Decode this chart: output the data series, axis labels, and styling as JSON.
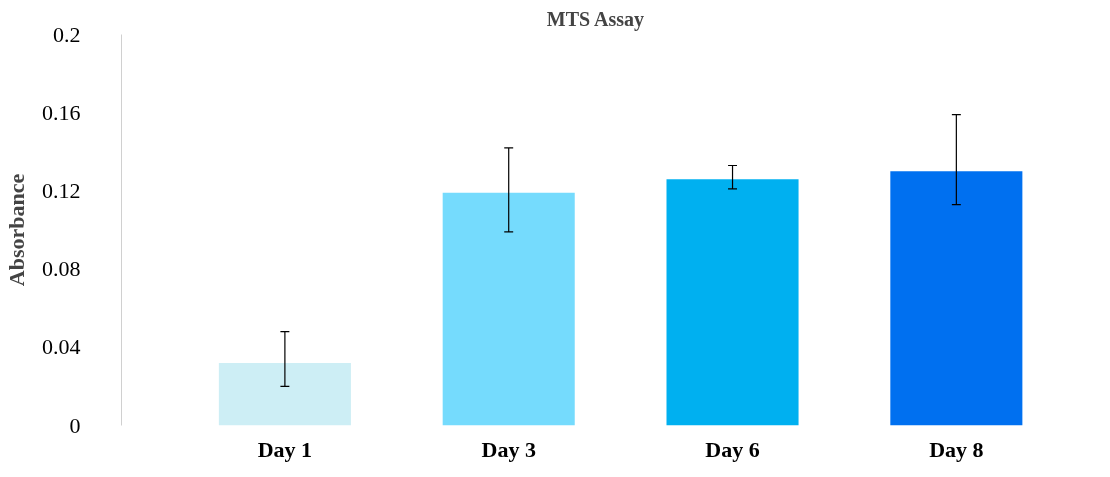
{
  "chart_data": {
    "type": "bar",
    "title": "MTS Assay",
    "ylabel": "Absorbance",
    "categories": [
      "Day 1",
      "Day 3",
      "Day 6",
      "Day 8"
    ],
    "values": [
      0.032,
      0.119,
      0.126,
      0.13
    ],
    "colors": [
      "#cdeef5",
      "#75dbfd",
      "#00b0f0",
      "#0070f0"
    ],
    "errors": [
      [
        0.02,
        0.048
      ],
      [
        0.099,
        0.142
      ],
      [
        0.121,
        0.133
      ],
      [
        0.113,
        0.159
      ]
    ],
    "ylim": [
      0,
      0.2
    ],
    "yticks": [
      0,
      0.04,
      0.08,
      0.12,
      0.16,
      0.2
    ],
    "grid": false
  }
}
